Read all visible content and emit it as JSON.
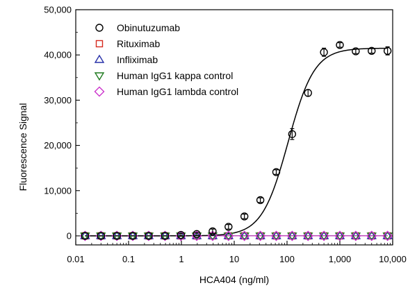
{
  "chart_data": {
    "type": "scatter",
    "xlabel": "HCA404 (ng/ml)",
    "ylabel": "Fluorescence Signal",
    "x_scale": "log",
    "xlim": [
      0.01,
      10000
    ],
    "ylim": [
      -2000,
      50000
    ],
    "x_ticks": [
      {
        "value": 0.01,
        "label": "0.01"
      },
      {
        "value": 0.1,
        "label": "0.1"
      },
      {
        "value": 1,
        "label": "1"
      },
      {
        "value": 10,
        "label": "10"
      },
      {
        "value": 100,
        "label": "100"
      },
      {
        "value": 1000,
        "label": "1,000"
      },
      {
        "value": 10000,
        "label": "10,000"
      }
    ],
    "y_ticks": [
      {
        "value": 0,
        "label": "0"
      },
      {
        "value": 10000,
        "label": "10,000"
      },
      {
        "value": 20000,
        "label": "20,000"
      },
      {
        "value": 30000,
        "label": "30,000"
      },
      {
        "value": 40000,
        "label": "40,000"
      },
      {
        "value": 50000,
        "label": "50,000"
      }
    ],
    "legend_position": "top-left",
    "x": [
      0.015,
      0.03,
      0.06,
      0.12,
      0.24,
      0.49,
      0.98,
      1.95,
      3.9,
      7.8,
      15.6,
      31.25,
      62.5,
      125,
      250,
      500,
      1000,
      2000,
      4000,
      8000
    ],
    "series": [
      {
        "name": "Obinutuzumab",
        "marker": "circle",
        "color": "#000000",
        "values": [
          0,
          0,
          0,
          0,
          0,
          0,
          200,
          400,
          1000,
          2000,
          4300,
          7900,
          14100,
          22500,
          31600,
          40600,
          42200,
          40800,
          40900,
          40900
        ],
        "errors": [
          0,
          0,
          0,
          0,
          0,
          0,
          300,
          300,
          500,
          500,
          500,
          500,
          500,
          1200,
          700,
          900,
          500,
          500,
          500,
          900
        ]
      },
      {
        "name": "Rituximab",
        "marker": "square",
        "color": "#d62a1e",
        "values": [
          0,
          0,
          0,
          0,
          0,
          0,
          0,
          0,
          0,
          0,
          0,
          0,
          0,
          0,
          0,
          0,
          0,
          0,
          0,
          0
        ]
      },
      {
        "name": "Infliximab",
        "marker": "triangle-up",
        "color": "#2630a8",
        "values": [
          0,
          0,
          0,
          0,
          0,
          0,
          0,
          0,
          0,
          0,
          0,
          0,
          0,
          0,
          0,
          0,
          0,
          0,
          0,
          0
        ]
      },
      {
        "name": "Human IgG1 kappa control",
        "marker": "triangle-down",
        "color": "#1e7a1e",
        "values": [
          0,
          0,
          0,
          0,
          0,
          0,
          0,
          0,
          0,
          0,
          0,
          0,
          0,
          0,
          0,
          0,
          0,
          0,
          0,
          0
        ]
      },
      {
        "name": "Human IgG1 lambda control",
        "marker": "diamond",
        "color": "#cc33cc",
        "values": [
          0,
          0,
          0,
          0,
          0,
          0,
          0,
          0,
          0,
          0,
          0,
          0,
          0,
          0,
          0,
          0,
          0,
          0,
          0,
          0
        ]
      }
    ],
    "fit_curve": {
      "bottom": 0,
      "top": 41500,
      "ec50": 105,
      "hill": 1.75
    }
  }
}
